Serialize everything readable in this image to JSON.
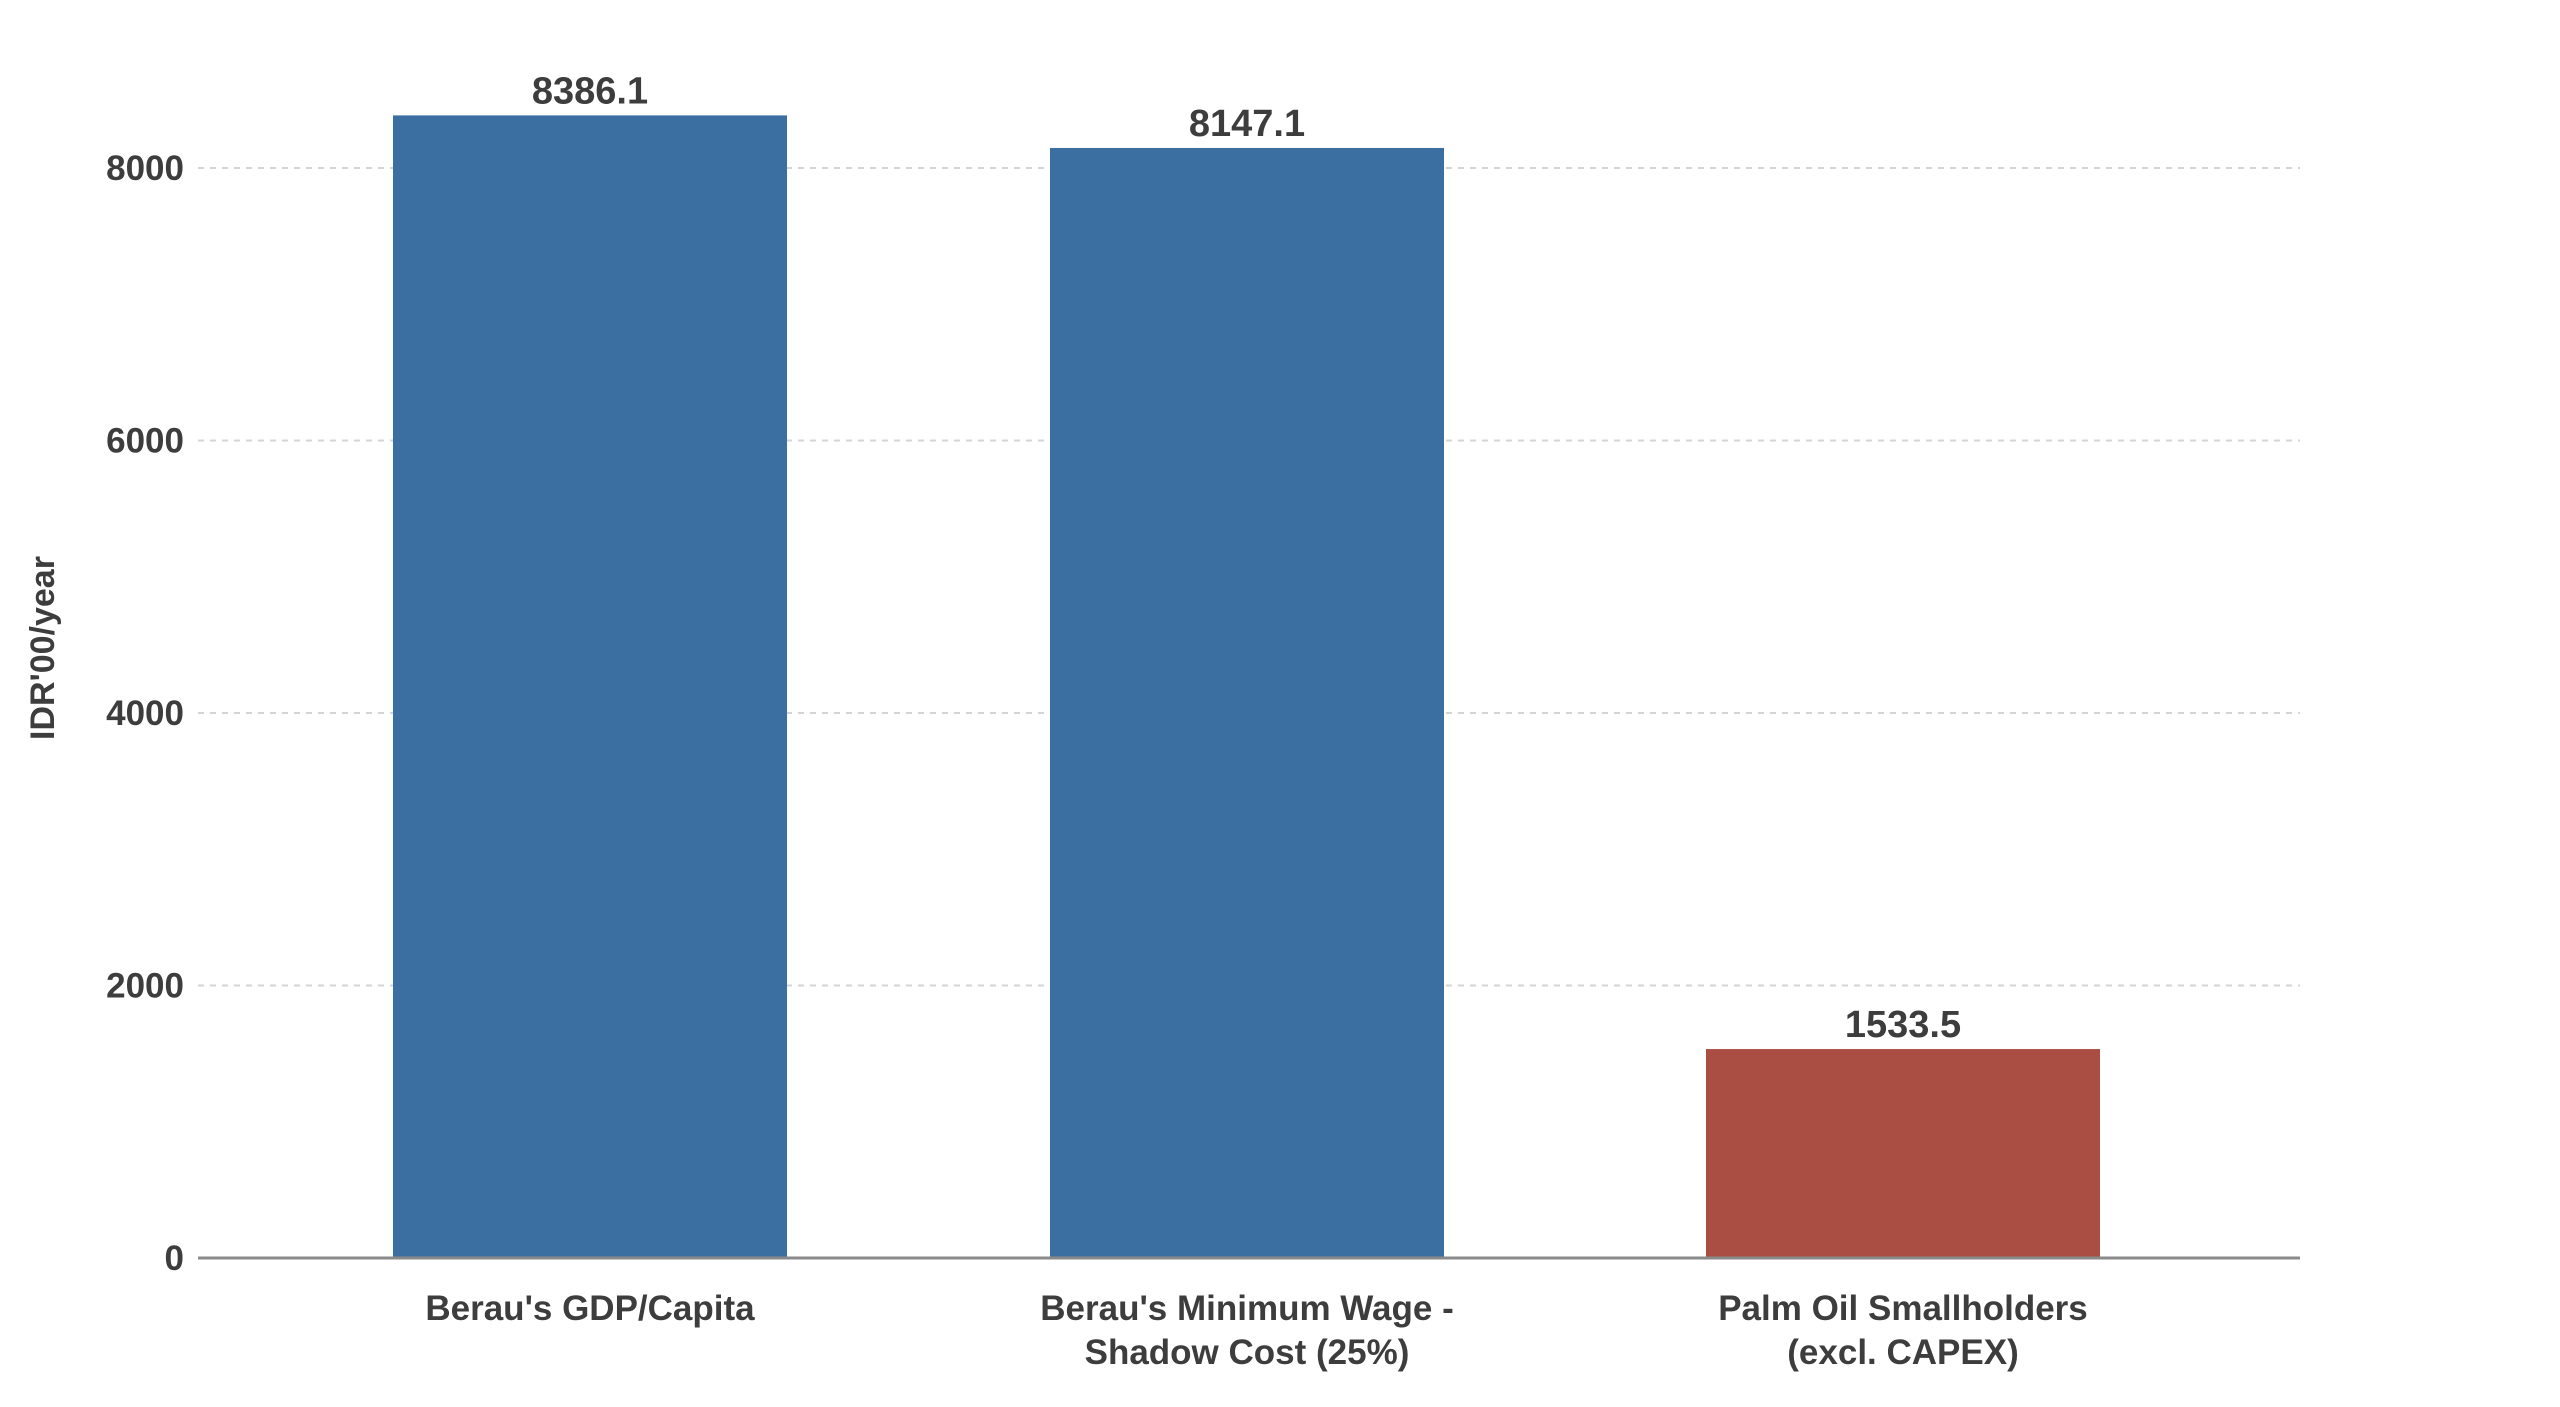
{
  "chart_data": {
    "type": "bar",
    "categories": [
      [
        "Berau's GDP/Capita"
      ],
      [
        "Berau's Minimum Wage -",
        "Shadow Cost (25%)"
      ],
      [
        "Palm Oil Smallholders",
        "(excl. CAPEX)"
      ]
    ],
    "values": [
      8386.1,
      8147.1,
      1533.5
    ],
    "data_labels": [
      "8386.1",
      "8147.1",
      "1533.5"
    ],
    "bar_colors": [
      "#3b6fa1",
      "#3b6fa1",
      "#aa4d42"
    ],
    "title": "",
    "xlabel": "",
    "ylabel": "IDR'00/year",
    "ylim": [
      0,
      8400
    ],
    "yticks": [
      0,
      2000,
      4000,
      6000,
      8000
    ],
    "ytick_labels": [
      "0",
      "2000",
      "4000",
      "6000",
      "8000"
    ],
    "grid": true,
    "legend": "none"
  }
}
